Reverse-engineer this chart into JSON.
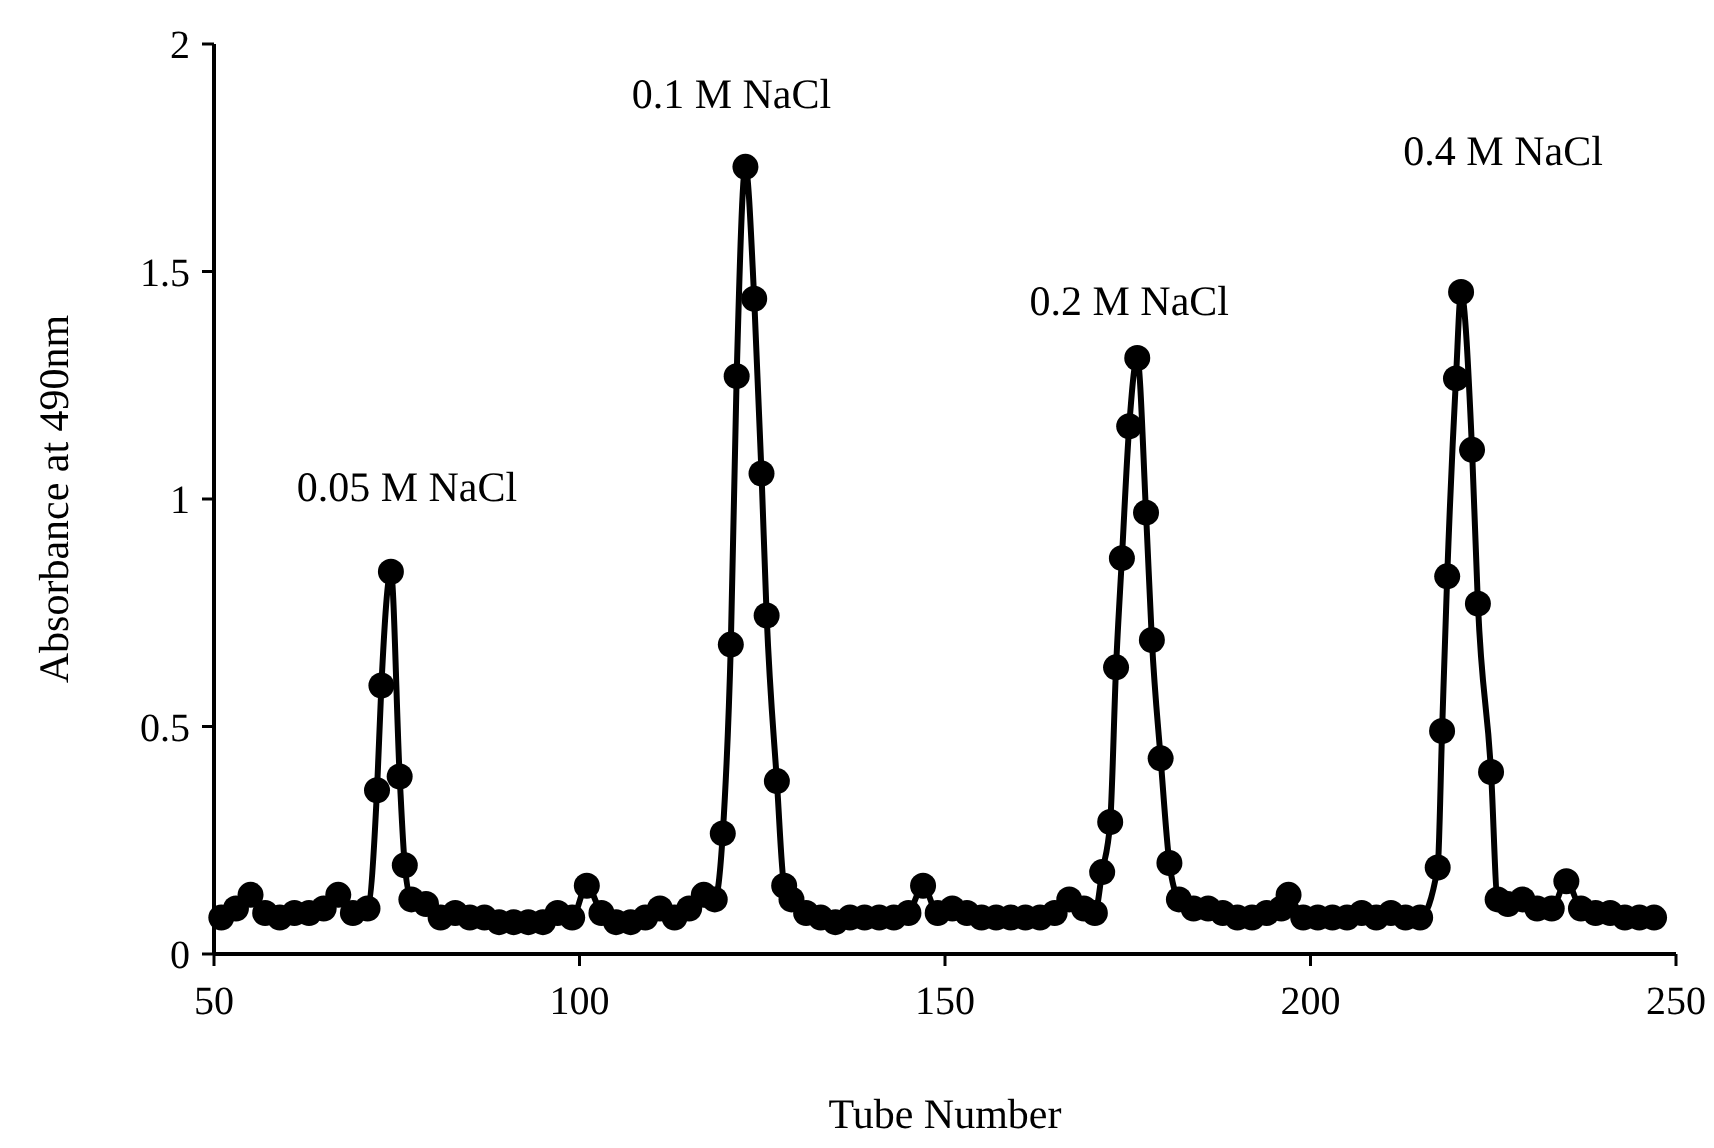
{
  "chart_data": {
    "type": "line",
    "xlabel": "Tube Number",
    "ylabel": "Absorbance at 490nm",
    "xlim": [
      50,
      250
    ],
    "xticks": [
      50,
      100,
      150,
      200,
      250
    ],
    "ylim": [
      0,
      2
    ],
    "yticks": [
      0,
      0.5,
      1,
      1.5,
      2
    ],
    "grid": false,
    "marker": "circle",
    "line_style": "solid",
    "series": [
      {
        "color": "#000000",
        "x": [
          51,
          53,
          55,
          57,
          59,
          61,
          63,
          65,
          67,
          69,
          71,
          72.3,
          72.9,
          74.2,
          75.4,
          76.1,
          77,
          79,
          81,
          83,
          85,
          87,
          89,
          91,
          93,
          95,
          97,
          99,
          101,
          103,
          105,
          107,
          109,
          111,
          113,
          115,
          117,
          118.5,
          119.6,
          120.7,
          121.5,
          122.7,
          123.9,
          124.9,
          125.6,
          127,
          128,
          129,
          131,
          133,
          135,
          137,
          139,
          141,
          143,
          145,
          147,
          149,
          151,
          153,
          155,
          157,
          159,
          161,
          163,
          165,
          167,
          169,
          170.5,
          171.5,
          172.6,
          173.4,
          174.2,
          175.2,
          176.3,
          177.5,
          178.3,
          179.5,
          180.7,
          182,
          184,
          186,
          188,
          190,
          192,
          194,
          196,
          197,
          199,
          201,
          203,
          205,
          207,
          209,
          211,
          213,
          215,
          217.4,
          218,
          218.7,
          219.9,
          220.6,
          222.1,
          222.9,
          224.7,
          225.6,
          227,
          229,
          231,
          233,
          235,
          237,
          239,
          241,
          243,
          245,
          247
        ],
        "values": [
          0.08,
          0.1,
          0.13,
          0.09,
          0.08,
          0.09,
          0.09,
          0.1,
          0.13,
          0.09,
          0.1,
          0.36,
          0.59,
          0.84,
          0.39,
          0.195,
          0.12,
          0.11,
          0.08,
          0.09,
          0.08,
          0.08,
          0.07,
          0.07,
          0.07,
          0.07,
          0.09,
          0.08,
          0.15,
          0.09,
          0.07,
          0.07,
          0.08,
          0.1,
          0.08,
          0.1,
          0.13,
          0.12,
          0.265,
          0.68,
          1.27,
          1.73,
          1.44,
          1.056,
          0.744,
          0.38,
          0.15,
          0.12,
          0.09,
          0.08,
          0.07,
          0.08,
          0.08,
          0.08,
          0.08,
          0.09,
          0.15,
          0.09,
          0.1,
          0.09,
          0.08,
          0.08,
          0.08,
          0.08,
          0.08,
          0.09,
          0.12,
          0.1,
          0.09,
          0.18,
          0.29,
          0.63,
          0.87,
          1.16,
          1.31,
          0.97,
          0.69,
          0.43,
          0.2,
          0.12,
          0.1,
          0.1,
          0.09,
          0.08,
          0.08,
          0.09,
          0.1,
          0.13,
          0.08,
          0.08,
          0.08,
          0.08,
          0.09,
          0.08,
          0.09,
          0.08,
          0.08,
          0.19,
          0.49,
          0.83,
          1.265,
          1.455,
          1.108,
          0.77,
          0.4,
          0.12,
          0.11,
          0.12,
          0.1,
          0.1,
          0.16,
          0.1,
          0.09,
          0.09,
          0.08,
          0.08,
          0.08
        ]
      }
    ],
    "annotations": [
      "0.05 M NaCl",
      "0.1 M NaCl",
      "0.2 M NaCl",
      "0.4 M NaCl"
    ]
  }
}
